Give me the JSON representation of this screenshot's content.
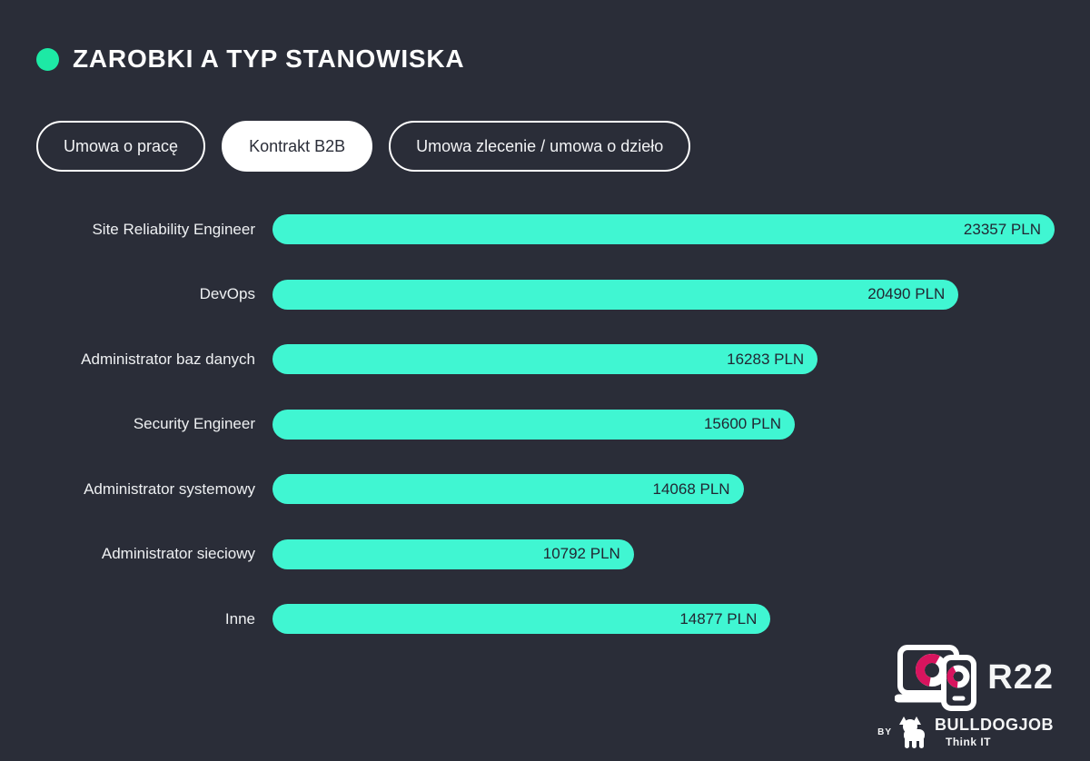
{
  "page": {
    "background_color": "#2a2d38",
    "accent_green": "#1de9a5",
    "bar_color": "#40f6d2",
    "bar_text_color": "#222733",
    "logo_accent_color": "#d8145e"
  },
  "header": {
    "title": "ZAROBKI A TYP STANOWISKA"
  },
  "tabs": [
    {
      "label": "Umowa o pracę",
      "active": false
    },
    {
      "label": "Kontrakt B2B",
      "active": true
    },
    {
      "label": "Umowa zlecenie / umowa o dzieło",
      "active": false
    }
  ],
  "chart_data": {
    "type": "bar",
    "orientation": "horizontal",
    "title": "ZAROBKI A TYP STANOWISKA",
    "selected_series": "Kontrakt B2B",
    "categories": [
      "Site Reliability Engineer",
      "DevOps",
      "Administrator baz danych",
      "Security Engineer",
      "Administrator systemowy",
      "Administrator sieciowy",
      "Inne"
    ],
    "values": [
      23357,
      20490,
      16283,
      15600,
      14068,
      10792,
      14877
    ],
    "value_suffix": " PLN",
    "value_labels": [
      "23357 PLN",
      "20490 PLN",
      "16283 PLN",
      "15600 PLN",
      "14068 PLN",
      "10792 PLN",
      "14877 PLN"
    ],
    "xlim": [
      0,
      23357
    ],
    "grid": false,
    "legend": false
  },
  "footer": {
    "logo_text": "R22",
    "by_label": "BY",
    "brand_name": "BULLDOGJOB",
    "brand_tagline": "Think IT"
  }
}
